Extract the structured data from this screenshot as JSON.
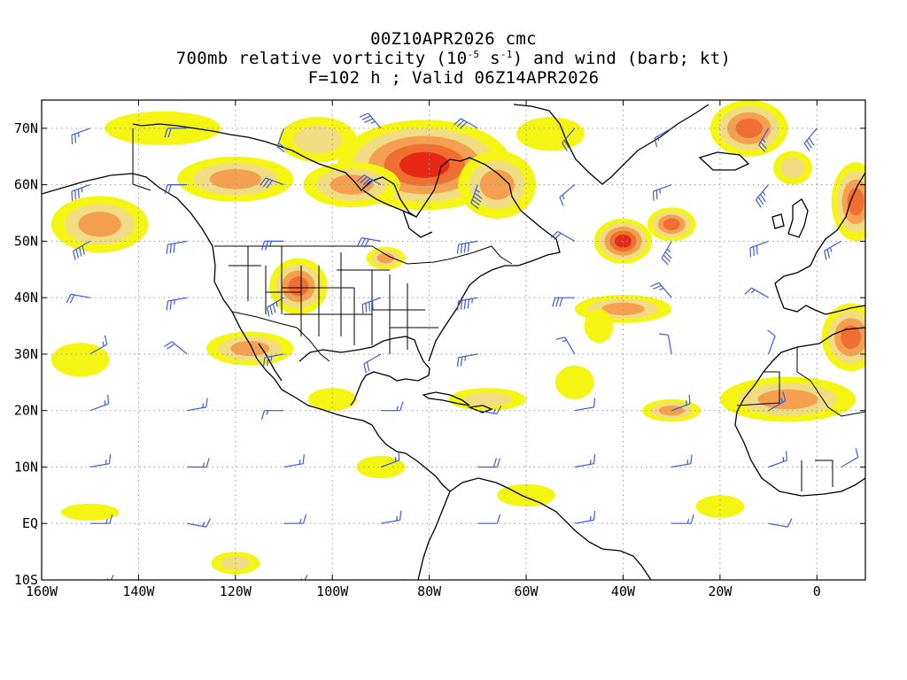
{
  "title": {
    "line1": "00Z10APR2026 cmc",
    "line2_pre": "700mb relative vorticity (10",
    "line2_exp1": "-5",
    "line2_mid": " s",
    "line2_exp2": "-1",
    "line2_post": ") and wind (barb; kt)",
    "line3": "F=102 h ; Valid 06Z14APR2026"
  },
  "axes": {
    "lon_min": -160,
    "lon_max": 10,
    "lat_min": -10,
    "lat_max": 75,
    "x_ticks": [
      {
        "value": -160,
        "label": "160W"
      },
      {
        "value": -140,
        "label": "140W"
      },
      {
        "value": -120,
        "label": "120W"
      },
      {
        "value": -100,
        "label": "100W"
      },
      {
        "value": -80,
        "label": "80W"
      },
      {
        "value": -60,
        "label": "60W"
      },
      {
        "value": -40,
        "label": "40W"
      },
      {
        "value": -20,
        "label": "20W"
      },
      {
        "value": 0,
        "label": "0"
      }
    ],
    "y_ticks": [
      {
        "value": 70,
        "label": "70N"
      },
      {
        "value": 60,
        "label": "60N"
      },
      {
        "value": 50,
        "label": "50N"
      },
      {
        "value": 40,
        "label": "40N"
      },
      {
        "value": 30,
        "label": "30N"
      },
      {
        "value": 20,
        "label": "20N"
      },
      {
        "value": 10,
        "label": "10N"
      },
      {
        "value": 0,
        "label": "EQ"
      },
      {
        "value": -10,
        "label": "10S"
      }
    ],
    "grid": "dotted"
  },
  "colors": {
    "level1": "#f5f514",
    "level2": "#f0dc82",
    "level3": "#f5a050",
    "level4": "#ef6e32",
    "level5": "#e62814",
    "barb": "#3c5adc",
    "coast": "#000000",
    "grid": "#9a9a9a"
  },
  "vorticity_features": [
    {
      "lon": -81,
      "lat": 63.5,
      "rlon": 18,
      "rlat": 8,
      "level": 5
    },
    {
      "lon": -96,
      "lat": 60,
      "rlon": 10,
      "rlat": 4,
      "level": 3
    },
    {
      "lon": -66,
      "lat": 60,
      "rlon": 8,
      "rlat": 6,
      "level": 3
    },
    {
      "lon": -103,
      "lat": 68,
      "rlon": 8,
      "rlat": 4,
      "level": 2
    },
    {
      "lon": -40,
      "lat": 50,
      "rlon": 6,
      "rlat": 4,
      "level": 5
    },
    {
      "lon": -30,
      "lat": 53,
      "rlon": 5,
      "rlat": 3,
      "level": 4
    },
    {
      "lon": -40,
      "lat": 38,
      "rlon": 10,
      "rlat": 2.5,
      "level": 3
    },
    {
      "lon": -14,
      "lat": 70,
      "rlon": 8,
      "rlat": 5,
      "level": 4
    },
    {
      "lon": -5,
      "lat": 63,
      "rlon": 4,
      "rlat": 3,
      "level": 2
    },
    {
      "lon": 8,
      "lat": 57,
      "rlon": 5,
      "rlat": 7,
      "level": 4
    },
    {
      "lon": 7,
      "lat": 33,
      "rlon": 6,
      "rlat": 6,
      "level": 4
    },
    {
      "lon": -6,
      "lat": 22,
      "rlon": 14,
      "rlat": 4,
      "level": 3
    },
    {
      "lon": -107,
      "lat": 42,
      "rlon": 6,
      "rlat": 5,
      "level": 4
    },
    {
      "lon": -148,
      "lat": 53,
      "rlon": 10,
      "rlat": 5,
      "level": 3
    },
    {
      "lon": -120,
      "lat": 61,
      "rlon": 12,
      "rlat": 4,
      "level": 3
    },
    {
      "lon": -117,
      "lat": 31,
      "rlon": 9,
      "rlat": 3,
      "level": 3
    },
    {
      "lon": -30,
      "lat": 20,
      "rlon": 6,
      "rlat": 2,
      "level": 3
    },
    {
      "lon": -68,
      "lat": 22,
      "rlon": 8,
      "rlat": 2,
      "level": 2
    },
    {
      "lon": -120,
      "lat": -7,
      "rlon": 5,
      "rlat": 2,
      "level": 2
    },
    {
      "lon": -89,
      "lat": 47,
      "rlon": 4,
      "rlat": 2,
      "level": 3
    },
    {
      "lon": -135,
      "lat": 70,
      "rlon": 12,
      "rlat": 3,
      "level": 1
    },
    {
      "lon": -55,
      "lat": 69,
      "rlon": 7,
      "rlat": 3,
      "level": 1
    },
    {
      "lon": -152,
      "lat": 29,
      "rlon": 6,
      "rlat": 3,
      "level": 1
    },
    {
      "lon": -50,
      "lat": 25,
      "rlon": 4,
      "rlat": 3,
      "level": 1
    },
    {
      "lon": -60,
      "lat": 5,
      "rlon": 6,
      "rlat": 2,
      "level": 1
    },
    {
      "lon": -90,
      "lat": 10,
      "rlon": 5,
      "rlat": 2,
      "level": 1
    },
    {
      "lon": -150,
      "lat": 2,
      "rlon": 6,
      "rlat": 1.5,
      "level": 1
    },
    {
      "lon": -20,
      "lat": 3,
      "rlon": 5,
      "rlat": 2,
      "level": 1
    },
    {
      "lon": -100,
      "lat": 22,
      "rlon": 5,
      "rlat": 2,
      "level": 1
    },
    {
      "lon": -45,
      "lat": 35,
      "rlon": 3,
      "rlat": 3,
      "level": 1
    }
  ],
  "wind_barbs": [
    {
      "lon": -150,
      "lat": 70,
      "dir": 250,
      "kt": 25
    },
    {
      "lon": -130,
      "lat": 70,
      "dir": 270,
      "kt": 20
    },
    {
      "lon": -110,
      "lat": 70,
      "dir": 200,
      "kt": 20
    },
    {
      "lon": -90,
      "lat": 70,
      "dir": 320,
      "kt": 35
    },
    {
      "lon": -70,
      "lat": 70,
      "dir": 300,
      "kt": 30
    },
    {
      "lon": -50,
      "lat": 70,
      "dir": 220,
      "kt": 20
    },
    {
      "lon": -30,
      "lat": 70,
      "dir": 240,
      "kt": 15
    },
    {
      "lon": -10,
      "lat": 70,
      "dir": 210,
      "kt": 25
    },
    {
      "lon": 0,
      "lat": 70,
      "dir": 220,
      "kt": 30
    },
    {
      "lon": -150,
      "lat": 60,
      "dir": 250,
      "kt": 35
    },
    {
      "lon": -130,
      "lat": 60,
      "dir": 270,
      "kt": 20
    },
    {
      "lon": -110,
      "lat": 60,
      "dir": 290,
      "kt": 30
    },
    {
      "lon": -90,
      "lat": 60,
      "dir": 300,
      "kt": 40
    },
    {
      "lon": -70,
      "lat": 60,
      "dir": 200,
      "kt": 45
    },
    {
      "lon": -50,
      "lat": 60,
      "dir": 230,
      "kt": 15
    },
    {
      "lon": -30,
      "lat": 60,
      "dir": 250,
      "kt": 25
    },
    {
      "lon": -10,
      "lat": 60,
      "dir": 220,
      "kt": 35
    },
    {
      "lon": -150,
      "lat": 50,
      "dir": 240,
      "kt": 40
    },
    {
      "lon": -130,
      "lat": 50,
      "dir": 260,
      "kt": 30
    },
    {
      "lon": -110,
      "lat": 50,
      "dir": 270,
      "kt": 25
    },
    {
      "lon": -90,
      "lat": 50,
      "dir": 280,
      "kt": 30
    },
    {
      "lon": -70,
      "lat": 50,
      "dir": 260,
      "kt": 40
    },
    {
      "lon": -50,
      "lat": 50,
      "dir": 300,
      "kt": 20
    },
    {
      "lon": -30,
      "lat": 50,
      "dir": 210,
      "kt": 35
    },
    {
      "lon": -10,
      "lat": 50,
      "dir": 250,
      "kt": 30
    },
    {
      "lon": 5,
      "lat": 50,
      "dir": 240,
      "kt": 25
    },
    {
      "lon": -150,
      "lat": 40,
      "dir": 280,
      "kt": 20
    },
    {
      "lon": -130,
      "lat": 40,
      "dir": 260,
      "kt": 25
    },
    {
      "lon": -110,
      "lat": 40,
      "dir": 240,
      "kt": 35
    },
    {
      "lon": -90,
      "lat": 40,
      "dir": 250,
      "kt": 40
    },
    {
      "lon": -70,
      "lat": 40,
      "dir": 260,
      "kt": 45
    },
    {
      "lon": -50,
      "lat": 40,
      "dir": 270,
      "kt": 30
    },
    {
      "lon": -30,
      "lat": 40,
      "dir": 320,
      "kt": 25
    },
    {
      "lon": -10,
      "lat": 40,
      "dir": 300,
      "kt": 15
    },
    {
      "lon": -150,
      "lat": 30,
      "dir": 60,
      "kt": 15
    },
    {
      "lon": -130,
      "lat": 30,
      "dir": 310,
      "kt": 20
    },
    {
      "lon": -110,
      "lat": 30,
      "dir": 260,
      "kt": 25
    },
    {
      "lon": -90,
      "lat": 30,
      "dir": 240,
      "kt": 20
    },
    {
      "lon": -70,
      "lat": 30,
      "dir": 260,
      "kt": 25
    },
    {
      "lon": -50,
      "lat": 30,
      "dir": 330,
      "kt": 15
    },
    {
      "lon": -30,
      "lat": 30,
      "dir": 350,
      "kt": 10
    },
    {
      "lon": -10,
      "lat": 30,
      "dir": 20,
      "kt": 10
    },
    {
      "lon": -150,
      "lat": 20,
      "dir": 70,
      "kt": 15
    },
    {
      "lon": -130,
      "lat": 20,
      "dir": 80,
      "kt": 15
    },
    {
      "lon": -110,
      "lat": 20,
      "dir": 270,
      "kt": 15
    },
    {
      "lon": -90,
      "lat": 20,
      "dir": 90,
      "kt": 15
    },
    {
      "lon": -70,
      "lat": 20,
      "dir": 100,
      "kt": 15
    },
    {
      "lon": -50,
      "lat": 20,
      "dir": 80,
      "kt": 10
    },
    {
      "lon": -30,
      "lat": 20,
      "dir": 70,
      "kt": 15
    },
    {
      "lon": -10,
      "lat": 20,
      "dir": 60,
      "kt": 15
    },
    {
      "lon": -150,
      "lat": 10,
      "dir": 80,
      "kt": 15
    },
    {
      "lon": -130,
      "lat": 10,
      "dir": 90,
      "kt": 15
    },
    {
      "lon": -110,
      "lat": 10,
      "dir": 80,
      "kt": 15
    },
    {
      "lon": -90,
      "lat": 10,
      "dir": 70,
      "kt": 15
    },
    {
      "lon": -70,
      "lat": 10,
      "dir": 90,
      "kt": 20
    },
    {
      "lon": -50,
      "lat": 10,
      "dir": 80,
      "kt": 15
    },
    {
      "lon": -30,
      "lat": 10,
      "dir": 80,
      "kt": 15
    },
    {
      "lon": -10,
      "lat": 10,
      "dir": 70,
      "kt": 15
    },
    {
      "lon": 5,
      "lat": 10,
      "dir": 60,
      "kt": 10
    },
    {
      "lon": -150,
      "lat": 0,
      "dir": 90,
      "kt": 15
    },
    {
      "lon": -130,
      "lat": 0,
      "dir": 100,
      "kt": 15
    },
    {
      "lon": -110,
      "lat": 0,
      "dir": 90,
      "kt": 15
    },
    {
      "lon": -90,
      "lat": 0,
      "dir": 80,
      "kt": 15
    },
    {
      "lon": -70,
      "lat": 0,
      "dir": 90,
      "kt": 10
    },
    {
      "lon": -50,
      "lat": 0,
      "dir": 80,
      "kt": 15
    },
    {
      "lon": -30,
      "lat": 0,
      "dir": 90,
      "kt": 15
    },
    {
      "lon": -10,
      "lat": 0,
      "dir": 100,
      "kt": 10
    },
    {
      "lon": -150,
      "lat": -10,
      "dir": 100,
      "kt": 15
    },
    {
      "lon": -130,
      "lat": -10,
      "dir": 110,
      "kt": 15
    },
    {
      "lon": -110,
      "lat": -10,
      "dir": 100,
      "kt": 15
    },
    {
      "lon": -90,
      "lat": -10,
      "dir": 110,
      "kt": 15
    }
  ]
}
